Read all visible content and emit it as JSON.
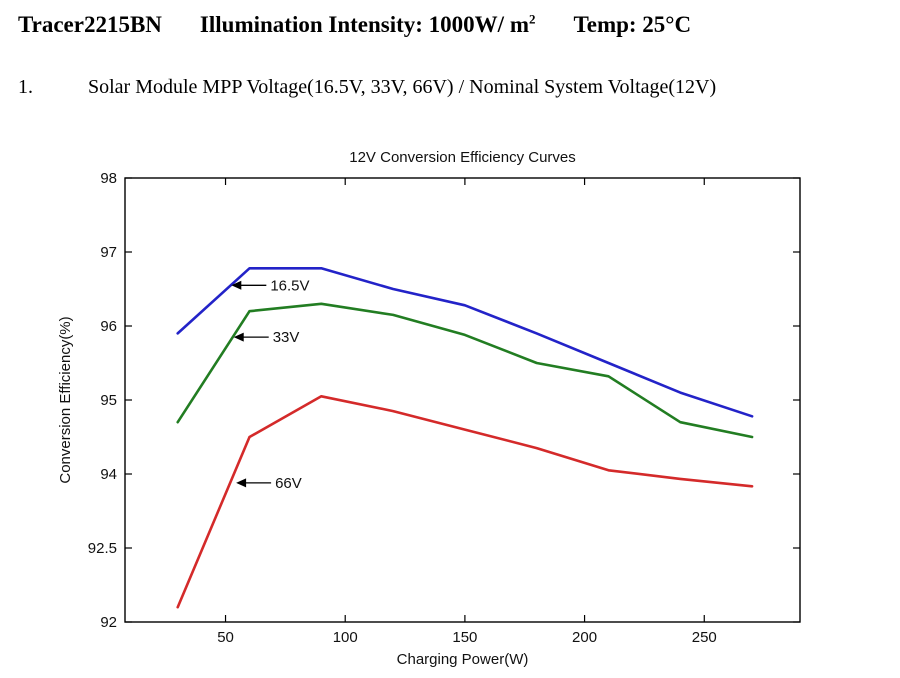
{
  "header": {
    "model": "Tracer2215BN",
    "illumination": "Illumination Intensity: 1000W/ m",
    "illumination_superscript": "2",
    "temp": "Temp: 25°C"
  },
  "note": {
    "number": "1.",
    "text": "Solar Module MPP Voltage(16.5V, 33V, 66V) / Nominal System Voltage(12V)"
  },
  "chart_data": {
    "type": "line",
    "title": "12V Conversion Efficiency Curves",
    "xlabel": "Charging Power(W)",
    "ylabel": "Conversion Efficiency(%)",
    "grid": false,
    "legend_position": "inline-annotations",
    "xlim": [
      8,
      290
    ],
    "x_ticks": [
      50,
      100,
      150,
      200,
      250
    ],
    "y_tick_labels": [
      "98",
      "97",
      "96",
      "95",
      "94",
      "92.5",
      "92"
    ],
    "y_tick_values": [
      98,
      97,
      96,
      95,
      94,
      92.5,
      92
    ],
    "x": [
      30,
      60,
      90,
      120,
      150,
      180,
      210,
      240,
      270
    ],
    "series": [
      {
        "name": "16.5V",
        "color": "#2323c8",
        "values": [
          95.9,
          96.78,
          96.78,
          96.5,
          96.28,
          95.9,
          95.5,
          95.1,
          94.78
        ]
      },
      {
        "name": "33V",
        "color": "#227d22",
        "values": [
          94.7,
          96.2,
          96.3,
          96.15,
          95.88,
          95.5,
          95.32,
          94.7,
          94.5
        ]
      },
      {
        "name": "66V",
        "color": "#d42a2a",
        "values": [
          92.1,
          94.5,
          95.05,
          94.85,
          94.6,
          94.35,
          94.05,
          93.9,
          93.75
        ]
      }
    ],
    "annotations": [
      {
        "label": "16.5V",
        "x": 52,
        "y": 96.55
      },
      {
        "label": "33V",
        "x": 53,
        "y": 95.85
      },
      {
        "label": "66V",
        "x": 54,
        "y": 93.82
      }
    ]
  }
}
